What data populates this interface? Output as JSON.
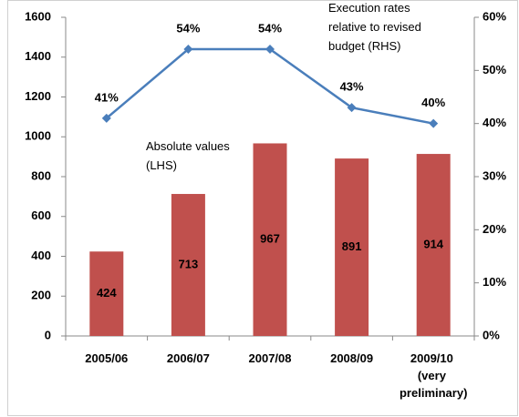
{
  "chart_data": {
    "type": "bar_line",
    "categories": [
      "2005/06",
      "2006/07",
      "2007/08",
      "2008/09",
      "2009/10 (very preliminary)"
    ],
    "series": [
      {
        "name": "Absolute values (LHS)",
        "type": "bar",
        "color": "#c0504d",
        "values": [
          424,
          713,
          967,
          891,
          914
        ]
      },
      {
        "name": "Execution rates relative to revised budget (RHS)",
        "type": "line",
        "axis": "y2",
        "color": "#4a7ebb",
        "values": [
          41,
          54,
          54,
          43,
          40
        ],
        "value_labels": [
          "41%",
          "54%",
          "54%",
          "43%",
          "40%"
        ]
      }
    ],
    "ylim": [
      0,
      1600
    ],
    "yticks": [
      0,
      200,
      400,
      600,
      800,
      1000,
      1200,
      1400,
      1600
    ],
    "y2lim": [
      0,
      60
    ],
    "y2ticks": [
      {
        "value": 0,
        "label": "0%"
      },
      {
        "value": 10,
        "label": "10%"
      },
      {
        "value": 20,
        "label": "20%"
      },
      {
        "value": 30,
        "label": "30%"
      },
      {
        "value": 40,
        "label": "40%"
      },
      {
        "value": 50,
        "label": "50%"
      },
      {
        "value": 60,
        "label": "60%"
      }
    ],
    "grid": false
  }
}
